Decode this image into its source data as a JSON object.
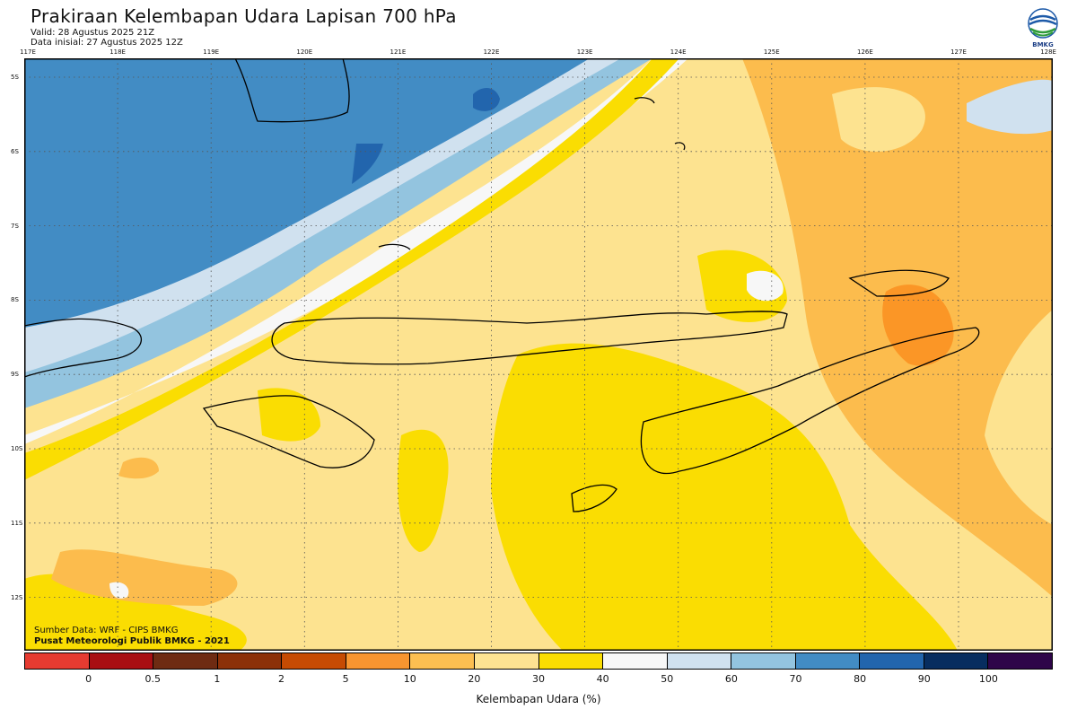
{
  "header": {
    "title": "Prakiraan Kelembapan Udara Lapisan 700 hPa",
    "valid": "Valid: 28 Agustus 2025 21Z",
    "init": "Data inisial: 27 Agustus 2025 12Z"
  },
  "logo": {
    "text": "BMKG"
  },
  "map": {
    "lon_labels": [
      "117E",
      "118E",
      "119E",
      "120E",
      "121E",
      "122E",
      "123E",
      "124E",
      "125E",
      "126E",
      "127E",
      "128E"
    ],
    "lat_labels": [
      "5S",
      "6S",
      "7S",
      "8S",
      "9S",
      "10S",
      "11S",
      "12S"
    ],
    "colors": {
      "c20_30": "#fde390",
      "c30_40": "#fadd02",
      "c10_20": "#fcbc4d",
      "c5_10": "#fb9626",
      "c40_50": "#f7f7f7",
      "c50_60": "#d0e1ef",
      "c60_70": "#93c4df",
      "c70_80": "#428cc4",
      "c80_90": "#2265ad"
    }
  },
  "footer": {
    "source": "Sumber Data: WRF - CIPS BMKG",
    "org": "Pusat Meteorologi Publik BMKG - 2021"
  },
  "legend": {
    "colors": [
      "#e63b31",
      "#a80f12",
      "#6e2b12",
      "#8c3108",
      "#c64b03",
      "#f89530",
      "#fcbf51",
      "#fde392",
      "#fadd02",
      "#f7f7f7",
      "#d0e1ef",
      "#93c4df",
      "#428cc4",
      "#2265ad",
      "#072d5f",
      "#2e0549"
    ],
    "ticks": [
      "0",
      "0.5",
      "1",
      "2",
      "5",
      "10",
      "20",
      "30",
      "40",
      "50",
      "60",
      "70",
      "80",
      "90",
      "100"
    ],
    "label": "Kelembapan Udara (%)"
  }
}
